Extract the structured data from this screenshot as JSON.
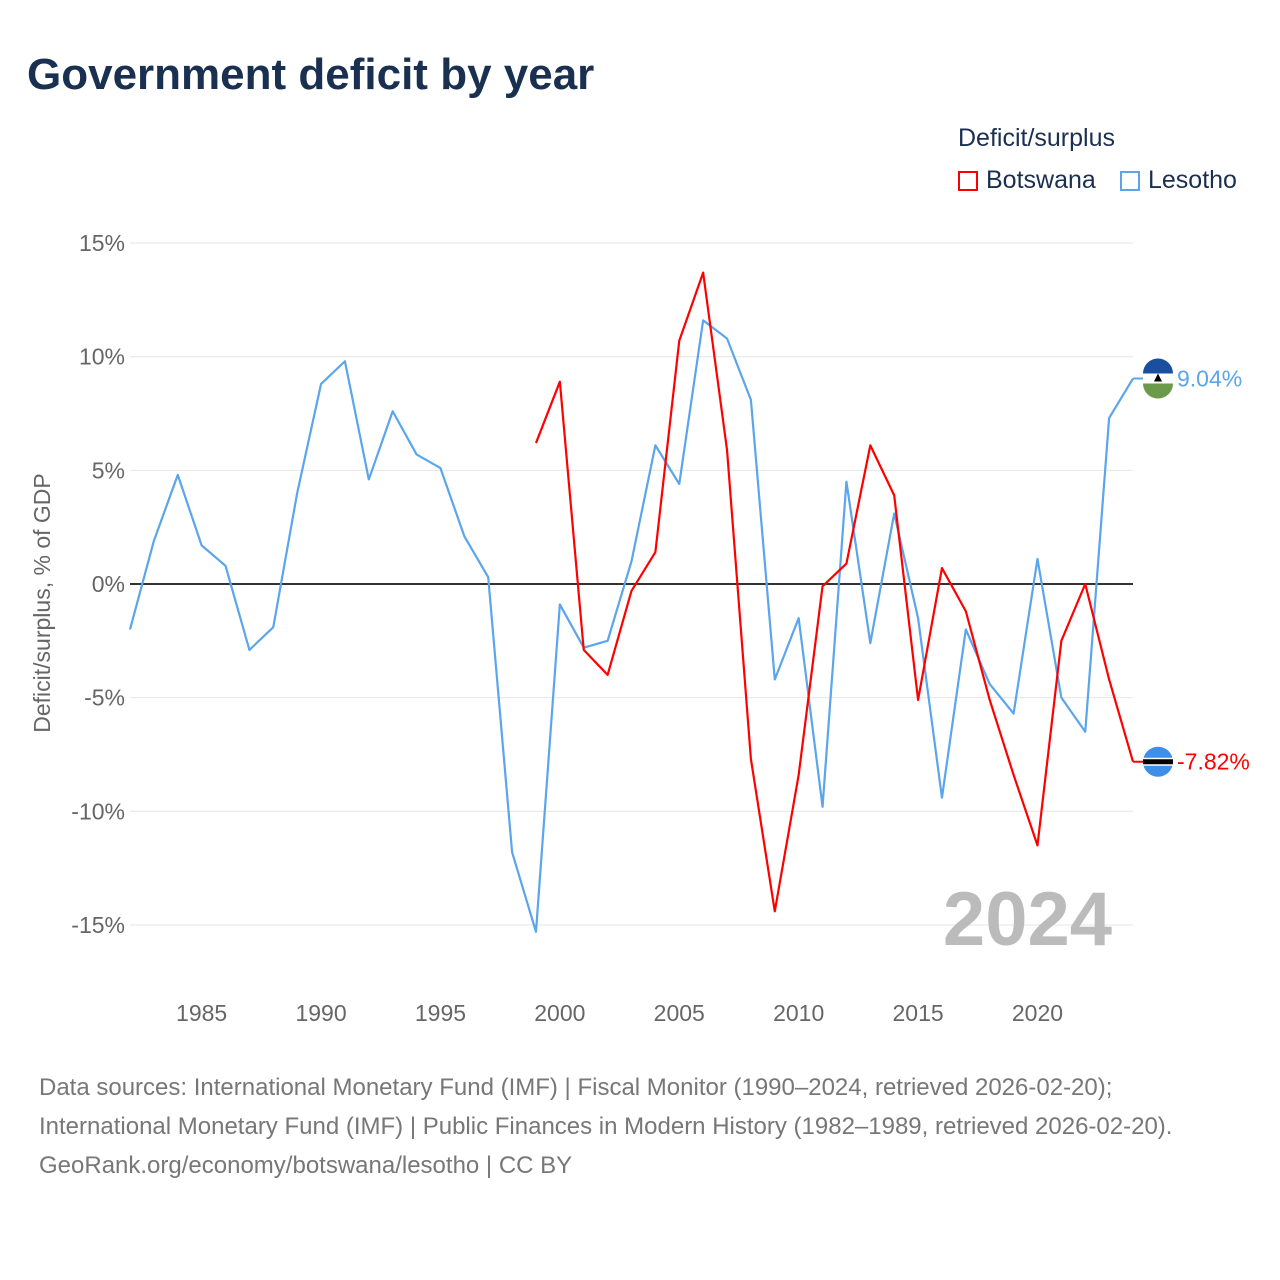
{
  "title": "Government deficit by year",
  "legend": {
    "title": "Deficit/surplus",
    "items": [
      {
        "name": "Botswana",
        "color": "#ff0000"
      },
      {
        "name": "Lesotho",
        "color": "#5aa5ec"
      }
    ]
  },
  "year_label": "2024",
  "footer": {
    "sources": "Data sources: International Monetary Fund (IMF) | Fiscal Monitor (1990–2024, retrieved 2026-02-20); International Monetary Fund (IMF) | Public Finances in Modern History (1982–1989, retrieved 2026-02-20).",
    "link": "GeoRank.org/economy/botswana/lesotho | CC BY"
  },
  "chart_data": {
    "type": "line",
    "title": "Government deficit by year",
    "xlabel": "",
    "ylabel": "Deficit/surplus, % of GDP",
    "xlim": [
      1982,
      2024
    ],
    "ylim": [
      -17,
      16
    ],
    "x_ticks": [
      1985,
      1990,
      1995,
      2000,
      2005,
      2010,
      2015,
      2020
    ],
    "y_ticks": [
      15,
      10,
      5,
      0,
      -5,
      -10,
      -15
    ],
    "y_tick_labels": [
      "15%",
      "10%",
      "5%",
      "0%",
      "-5%",
      "-10%",
      "-15%"
    ],
    "grid": true,
    "legend_position": "top-right",
    "series": [
      {
        "name": "Botswana",
        "color": "#ff0000",
        "end_label": "-7.82%",
        "x": [
          1999,
          2000,
          2001,
          2002,
          2003,
          2004,
          2005,
          2006,
          2007,
          2008,
          2009,
          2010,
          2011,
          2012,
          2013,
          2014,
          2015,
          2016,
          2017,
          2018,
          2019,
          2020,
          2021,
          2022,
          2023,
          2024
        ],
        "values": [
          6.2,
          8.9,
          -2.9,
          -4.0,
          -0.3,
          1.4,
          10.7,
          13.7,
          5.9,
          -7.7,
          -14.4,
          -8.4,
          -0.1,
          0.9,
          6.1,
          3.9,
          -5.1,
          0.7,
          -1.2,
          -5.1,
          -8.4,
          -11.5,
          -2.5,
          0.0,
          -4.2,
          -7.82
        ]
      },
      {
        "name": "Lesotho",
        "color": "#5aa5ec",
        "end_label": "9.04%",
        "x": [
          1982,
          1983,
          1984,
          1985,
          1986,
          1987,
          1988,
          1989,
          1990,
          1991,
          1992,
          1993,
          1994,
          1995,
          1996,
          1997,
          1998,
          1999,
          2000,
          2001,
          2002,
          2003,
          2004,
          2005,
          2006,
          2007,
          2008,
          2009,
          2010,
          2011,
          2012,
          2013,
          2014,
          2015,
          2016,
          2017,
          2018,
          2019,
          2020,
          2021,
          2022,
          2023,
          2024
        ],
        "values": [
          -2.0,
          1.9,
          4.8,
          1.7,
          0.8,
          -2.9,
          -1.9,
          4.0,
          8.8,
          9.8,
          4.6,
          7.6,
          5.7,
          5.1,
          2.1,
          0.3,
          -11.8,
          -15.3,
          -0.9,
          -2.8,
          -2.5,
          1.0,
          6.1,
          4.4,
          11.6,
          10.8,
          8.1,
          -4.2,
          -1.5,
          -9.8,
          4.5,
          -2.6,
          3.1,
          -1.5,
          -9.4,
          -2.0,
          -4.4,
          -5.7,
          1.1,
          -5.0,
          -6.5,
          7.3,
          9.04
        ]
      }
    ]
  }
}
